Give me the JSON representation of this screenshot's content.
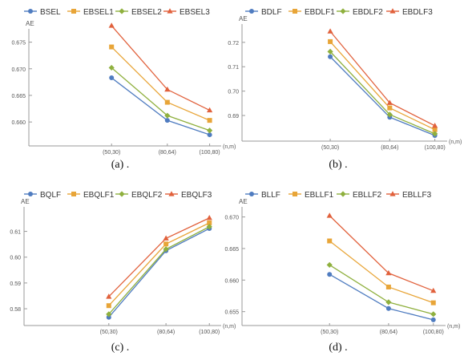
{
  "chart_data": [
    {
      "type": "line",
      "ylabel": "AE",
      "xlabel": "(n,m)",
      "categories": [
        "(50,30)",
        "(80,64)",
        "(100,80)"
      ],
      "ylim": [
        0.6555,
        0.6775
      ],
      "yticks": [
        "0.660",
        "0.665",
        "0.670",
        "0.675"
      ],
      "series": [
        {
          "name": "BSEL",
          "color": "#4f7cc0",
          "marker": "circle",
          "values": [
            0.6683,
            0.6603,
            0.6576
          ]
        },
        {
          "name": "EBSEL1",
          "color": "#e8a538",
          "marker": "square",
          "values": [
            0.6741,
            0.6637,
            0.6603
          ]
        },
        {
          "name": "EBSEL2",
          "color": "#8fb03e",
          "marker": "diamond",
          "values": [
            0.6702,
            0.6612,
            0.6584
          ]
        },
        {
          "name": "EBSEL3",
          "color": "#e1613c",
          "marker": "triangle",
          "values": [
            0.6781,
            0.6661,
            0.6622
          ]
        }
      ],
      "caption": "(a)  ."
    },
    {
      "type": "line",
      "ylabel": "AE",
      "xlabel": "(n,m)",
      "categories": [
        "(50,30)",
        "(80,64)",
        "(100,80)"
      ],
      "ylim": [
        0.6795,
        0.7275
      ],
      "yticks": [
        "0.69",
        "0.70",
        "0.71",
        "0.72"
      ],
      "series": [
        {
          "name": "BDLF",
          "color": "#4f7cc0",
          "marker": "circle",
          "values": [
            0.7141,
            0.6893,
            0.6818
          ]
        },
        {
          "name": "EBDLF1",
          "color": "#e8a538",
          "marker": "square",
          "values": [
            0.7203,
            0.6931,
            0.6842
          ]
        },
        {
          "name": "EBDLF2",
          "color": "#8fb03e",
          "marker": "diamond",
          "values": [
            0.7162,
            0.6904,
            0.6825
          ]
        },
        {
          "name": "EBDLF3",
          "color": "#e1613c",
          "marker": "triangle",
          "values": [
            0.7245,
            0.6952,
            0.6858
          ]
        }
      ],
      "caption": "(b)  ."
    },
    {
      "type": "line",
      "ylabel": "AE",
      "xlabel": "(n,m)",
      "categories": [
        "(50,30)",
        "(80,64)",
        "(100,80)"
      ],
      "ylim": [
        0.5735,
        0.6195
      ],
      "yticks": [
        "0.58",
        "0.59",
        "0.60",
        "0.61"
      ],
      "series": [
        {
          "name": "BQLF",
          "color": "#4f7cc0",
          "marker": "circle",
          "values": [
            0.5767,
            0.6025,
            0.6111
          ]
        },
        {
          "name": "EBQLF1",
          "color": "#e8a538",
          "marker": "square",
          "values": [
            0.5812,
            0.6051,
            0.6133
          ]
        },
        {
          "name": "EBQLF2",
          "color": "#8fb03e",
          "marker": "diamond",
          "values": [
            0.5779,
            0.6031,
            0.6118
          ]
        },
        {
          "name": "EBQLF3",
          "color": "#e1613c",
          "marker": "triangle",
          "values": [
            0.5847,
            0.6073,
            0.6152
          ]
        }
      ],
      "caption": "(c)  ."
    },
    {
      "type": "line",
      "ylabel": "AE",
      "xlabel": "(n,m)",
      "categories": [
        "(50,30)",
        "(80,64)",
        "(100,80)"
      ],
      "ylim": [
        0.6528,
        0.6716
      ],
      "yticks": [
        "0.655",
        "0.660",
        "0.665",
        "0.670"
      ],
      "series": [
        {
          "name": "BLLF",
          "color": "#4f7cc0",
          "marker": "circle",
          "values": [
            0.6609,
            0.6555,
            0.6537
          ]
        },
        {
          "name": "EBLLF1",
          "color": "#e8a538",
          "marker": "square",
          "values": [
            0.6662,
            0.6589,
            0.6564
          ]
        },
        {
          "name": "EBLLF2",
          "color": "#8fb03e",
          "marker": "diamond",
          "values": [
            0.6624,
            0.6565,
            0.6546
          ]
        },
        {
          "name": "EBLLF3",
          "color": "#e1613c",
          "marker": "triangle",
          "values": [
            0.6702,
            0.6611,
            0.6583
          ]
        }
      ],
      "caption": "(d)  ."
    }
  ]
}
